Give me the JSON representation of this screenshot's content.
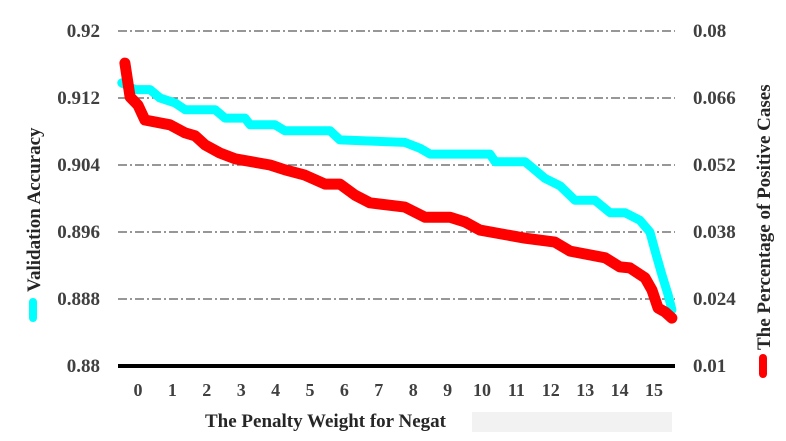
{
  "chart_data": {
    "type": "line",
    "title": "",
    "xlabel": "The Penalty Weight for Negative Samples",
    "xlabel_visible_text": "The Penalty Weight for Negat",
    "x_ticks": [
      "0",
      "1",
      "2",
      "3",
      "4",
      "5",
      "6",
      "7",
      "8",
      "9",
      "10",
      "11",
      "12",
      "13",
      "14",
      "15"
    ],
    "xlim": [
      -0.5,
      15.6
    ],
    "grid": "horizontal dash-dot",
    "legend": "embedded in axis labels (cyan marker on left label, red marker on right label)",
    "axes": {
      "left": {
        "label": "Validation Accuracy",
        "ticks": [
          "0.92",
          "0.912",
          "0.904",
          "0.896",
          "0.888",
          "0.88"
        ],
        "ylim": [
          0.88,
          0.92
        ],
        "color": "#00ffff"
      },
      "right": {
        "label": "The Percentage of Positive Cases",
        "ticks": [
          "0.08",
          "0.066",
          "0.052",
          "0.038",
          "0.024",
          "0.01"
        ],
        "ylim": [
          0.01,
          0.08
        ],
        "color": "#ff0000"
      }
    },
    "series": [
      {
        "name": "Validation Accuracy",
        "axis": "left",
        "color": "#00ffff",
        "x": [
          -0.47,
          -0.09,
          0.35,
          0.64,
          1.08,
          1.37,
          2.24,
          2.53,
          3.11,
          3.26,
          3.98,
          4.27,
          5.58,
          5.87,
          7.76,
          8.2,
          8.49,
          10.23,
          10.38,
          11.25,
          11.54,
          11.83,
          12.27,
          12.7,
          13.28,
          13.72,
          14.16,
          14.59,
          14.88,
          15.06,
          15.23,
          15.41,
          15.52
        ],
        "values": [
          0.9138,
          0.913,
          0.913,
          0.912,
          0.9114,
          0.9106,
          0.9106,
          0.9096,
          0.9096,
          0.9088,
          0.9088,
          0.9081,
          0.9081,
          0.907,
          0.9067,
          0.906,
          0.9053,
          0.9053,
          0.9044,
          0.9044,
          0.9034,
          0.9024,
          0.9015,
          0.8998,
          0.8998,
          0.8983,
          0.8983,
          0.8974,
          0.896,
          0.8933,
          0.8909,
          0.8885,
          0.8867
        ]
      },
      {
        "name": "The Percentage of Positive Cases",
        "axis": "right",
        "color": "#ff0000",
        "x": [
          -0.38,
          -0.23,
          0.0,
          0.2,
          0.93,
          1.37,
          1.66,
          1.95,
          2.38,
          2.82,
          3.84,
          4.27,
          4.85,
          5.44,
          5.87,
          6.31,
          6.74,
          7.76,
          8.34,
          9.07,
          9.51,
          9.94,
          11.25,
          12.12,
          12.56,
          13.58,
          14.01,
          14.3,
          14.74,
          14.94,
          15.12,
          15.32,
          15.52
        ],
        "values": [
          0.0733,
          0.0662,
          0.0645,
          0.0614,
          0.0604,
          0.0587,
          0.0581,
          0.0562,
          0.0545,
          0.0533,
          0.052,
          0.051,
          0.0499,
          0.048,
          0.048,
          0.0457,
          0.0441,
          0.0432,
          0.0411,
          0.0411,
          0.0401,
          0.0384,
          0.0367,
          0.0359,
          0.034,
          0.0326,
          0.0307,
          0.0305,
          0.0284,
          0.0259,
          0.0221,
          0.0213,
          0.02
        ]
      }
    ]
  }
}
